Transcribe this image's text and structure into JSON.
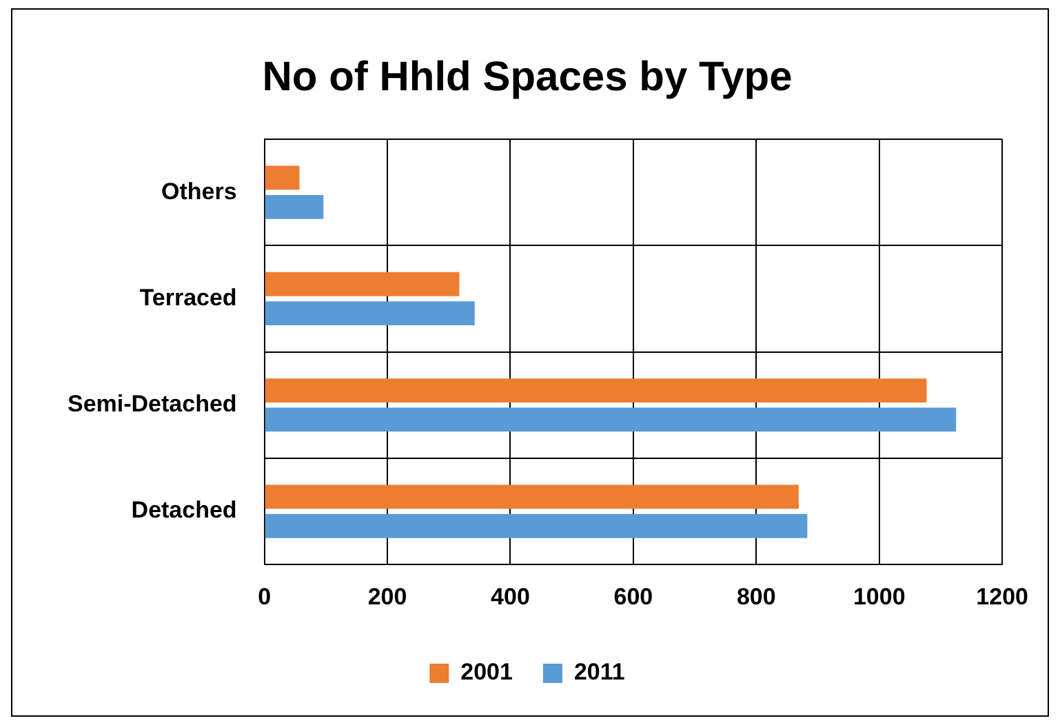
{
  "chart_data": {
    "type": "bar",
    "orientation": "horizontal",
    "title": "No of Hhld Spaces by Type",
    "categories": [
      "Others",
      "Terraced",
      "Semi-Detached",
      "Detached"
    ],
    "series": [
      {
        "name": "2001",
        "color": "#ed7d31",
        "values": [
          57,
          317,
          1077,
          869
        ]
      },
      {
        "name": "2011",
        "color": "#5b9bd5",
        "values": [
          96,
          342,
          1125,
          883
        ]
      }
    ],
    "xlim": [
      0,
      1200
    ],
    "xticks": [
      0,
      200,
      400,
      600,
      800,
      1000,
      1200
    ],
    "grid": true,
    "legend": "bottom"
  }
}
